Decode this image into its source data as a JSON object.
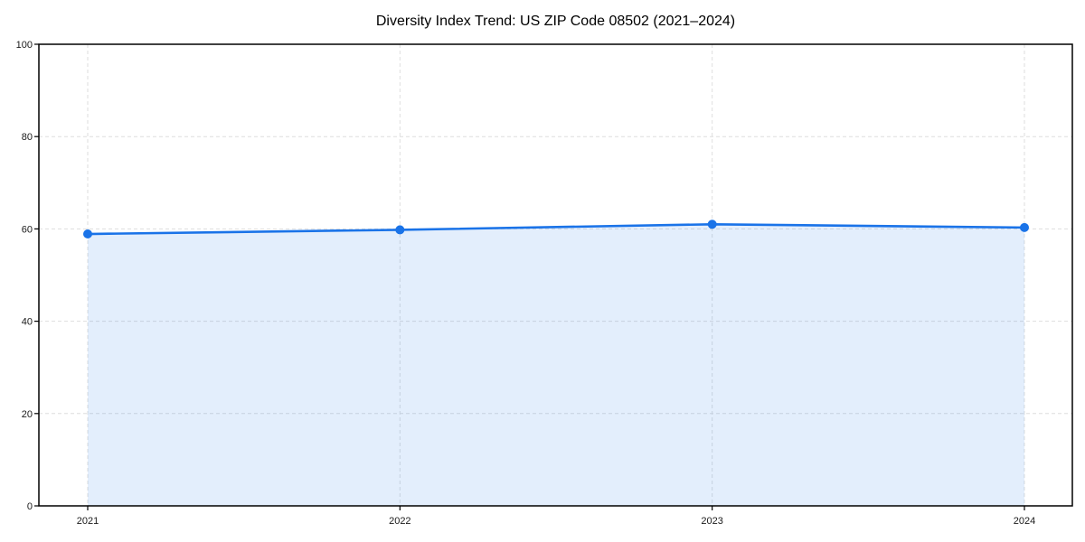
{
  "figure": {
    "background": "#ffffff"
  },
  "chart_data": {
    "type": "area",
    "title": "Diversity Index Trend: US ZIP Code 08502 (2021–2024)",
    "x": [
      "2021",
      "2022",
      "2023",
      "2024"
    ],
    "series": [
      {
        "name": "Diversity Index",
        "values": [
          58.9,
          59.8,
          61.0,
          60.3
        ]
      }
    ],
    "xlabel": "",
    "ylabel": "",
    "ylim": [
      0,
      100
    ],
    "yticks": [
      0,
      20,
      40,
      60,
      80,
      100
    ],
    "grid": {
      "show": true,
      "style": "dashed",
      "color": "#dedede"
    },
    "legend_position": "none",
    "marker_style": "circle",
    "line_width": 2.6,
    "marker_radius": 5,
    "colors": {
      "line": "#1a73e8",
      "marker": "#1a73e8",
      "fill": "rgba(26, 115, 232, 0.12)",
      "axis": "#000000",
      "tick_label": "#1a1a1a",
      "title": "#000000"
    }
  }
}
